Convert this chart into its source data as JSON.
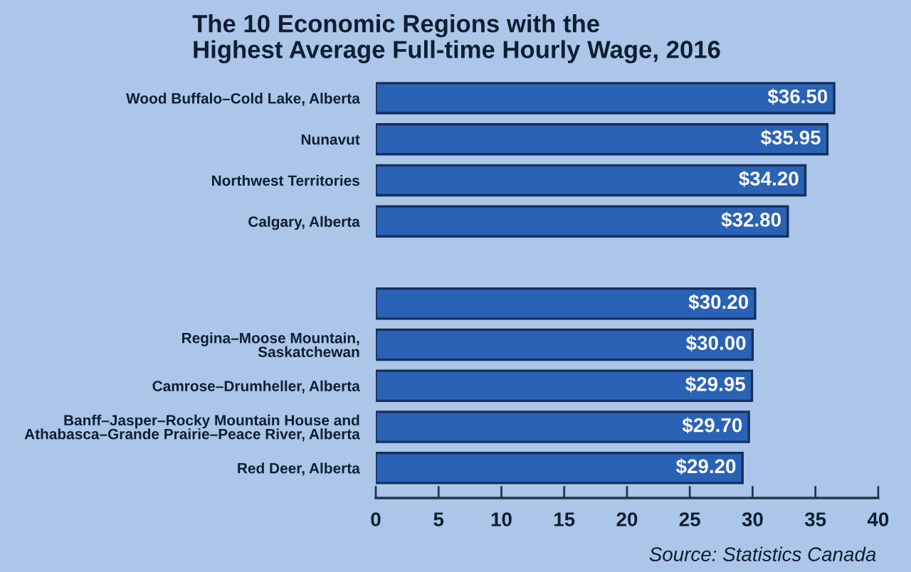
{
  "chart_data": {
    "type": "bar",
    "orientation": "horizontal",
    "title": "The 10 Economic Regions with the\nHighest Average Full-time Hourly Wage, 2016",
    "categories": [
      "Wood Buffalo–Cold Lake, Alberta",
      "Nunavut",
      "Northwest Territories",
      "Calgary, Alberta",
      null,
      null,
      "Regina–Moose Mountain,\nSaskatchewan",
      "Camrose–Drumheller, Alberta",
      "Banff–Jasper–Rocky Mountain House and\nAthabasca–Grande Prairie–Peace River, Alberta",
      "Red Deer, Alberta"
    ],
    "values": [
      36.5,
      35.95,
      34.2,
      32.8,
      null,
      30.2,
      30.0,
      29.95,
      29.7,
      29.2
    ],
    "value_labels": [
      "$36.50",
      "$35.95",
      "$34.20",
      "$32.80",
      null,
      "$30.20",
      "$30.00",
      "$29.95",
      "$29.70",
      "$29.20"
    ],
    "color": "#2a62b6",
    "xlim": [
      0,
      40
    ],
    "xticks": [
      0,
      5,
      10,
      15,
      20,
      25,
      30,
      35,
      40
    ],
    "grid": false,
    "legend": false,
    "annotations": [
      "Source: Statistics Canada"
    ]
  }
}
